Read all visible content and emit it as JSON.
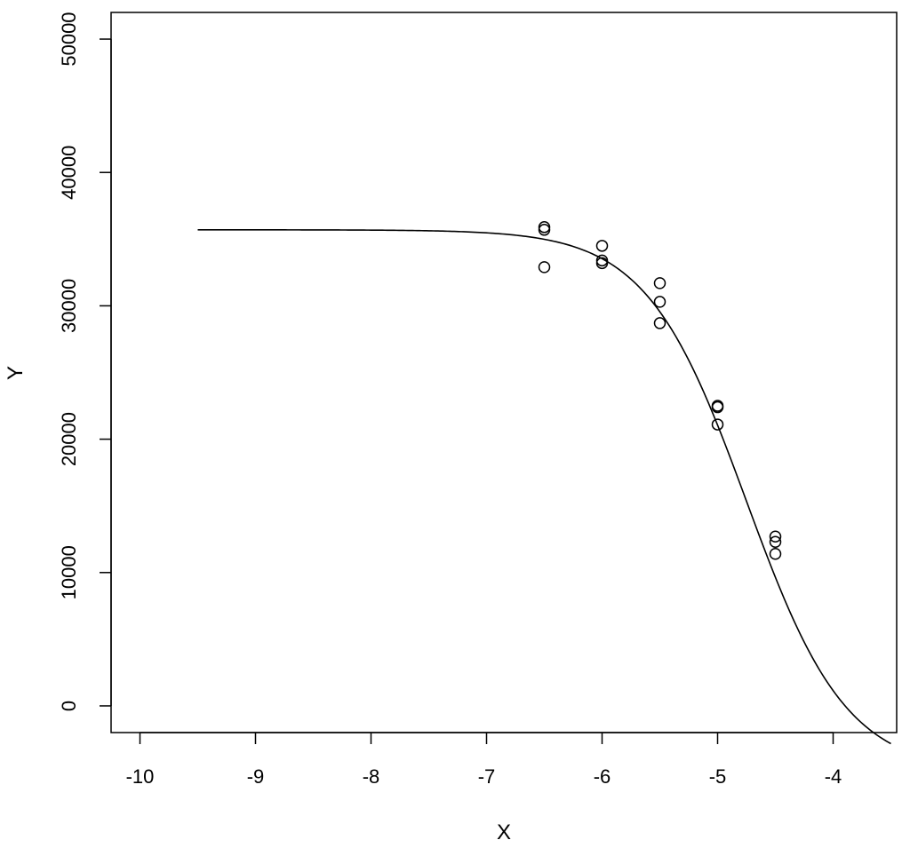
{
  "chart_data": {
    "type": "scatter",
    "title": "",
    "xlabel": "X",
    "ylabel": "Y",
    "xlim": [
      -10.25,
      -3.45
    ],
    "ylim": [
      -2000,
      52000
    ],
    "x_ticks": [
      -10,
      -9,
      -8,
      -7,
      -6,
      -5,
      -4
    ],
    "x_tick_labels": [
      "-10",
      "-9",
      "-8",
      "-7",
      "-6",
      "-5",
      "-4"
    ],
    "y_ticks": [
      0,
      10000,
      20000,
      30000,
      40000,
      50000
    ],
    "y_tick_labels": [
      "0",
      "10000",
      "20000",
      "30000",
      "40000",
      "50000"
    ],
    "grid": false,
    "series": [
      {
        "kind": "points",
        "marker": "open-circle",
        "points": [
          {
            "x": -6.5,
            "y": 35900
          },
          {
            "x": -6.5,
            "y": 35700
          },
          {
            "x": -6.5,
            "y": 32900
          },
          {
            "x": -6.0,
            "y": 34500
          },
          {
            "x": -6.0,
            "y": 33400
          },
          {
            "x": -6.0,
            "y": 33200
          },
          {
            "x": -5.5,
            "y": 31700
          },
          {
            "x": -5.5,
            "y": 30300
          },
          {
            "x": -5.5,
            "y": 28700
          },
          {
            "x": -5.0,
            "y": 22500
          },
          {
            "x": -5.0,
            "y": 22400
          },
          {
            "x": -5.0,
            "y": 21100
          },
          {
            "x": -4.5,
            "y": 12700
          },
          {
            "x": -4.5,
            "y": 12300
          },
          {
            "x": -4.5,
            "y": 11400
          }
        ]
      },
      {
        "kind": "fitted-curve",
        "model": "4-parameter logistic",
        "top": 35700,
        "bottom": -5000,
        "log_ec50": -4.75,
        "hill_slope": 1.0,
        "x_range": [
          -9.5,
          -3.5
        ]
      }
    ],
    "colors": {
      "ink": "#000000",
      "background": "#ffffff"
    }
  }
}
